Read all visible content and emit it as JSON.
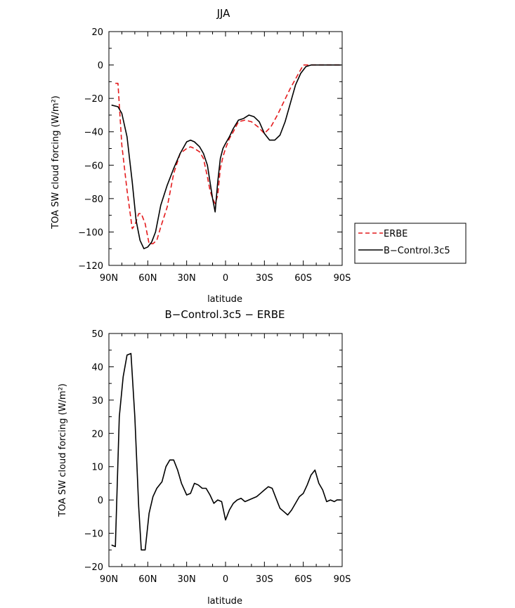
{
  "chart_data": [
    {
      "type": "line",
      "title": "JJA",
      "xlabel": "latitude",
      "ylabel": "TOA SW cloud forcing (W/m²)",
      "xlim": [
        90,
        -90
      ],
      "ylim": [
        -120,
        20
      ],
      "x_ticks": [
        90,
        60,
        30,
        0,
        -30,
        -60,
        -90
      ],
      "x_tick_labels": [
        "90N",
        "60N",
        "30N",
        "0",
        "30S",
        "60S",
        "90S"
      ],
      "y_ticks": [
        -120,
        -100,
        -80,
        -60,
        -40,
        -20,
        0,
        20
      ],
      "y_tick_labels": [
        "−120",
        "−100",
        "−80",
        "−60",
        "−40",
        "−20",
        "0",
        "20"
      ],
      "legend": {
        "position": "right",
        "entries": [
          "ERBE",
          "B−Control.3c5"
        ]
      },
      "series": [
        {
          "name": "ERBE",
          "color": "#e41a1c",
          "dash": "dashed",
          "x": [
            85,
            83,
            80,
            76,
            72,
            70,
            67,
            65,
            62,
            59,
            56,
            53,
            50,
            45,
            40,
            35,
            30,
            27,
            24,
            20,
            17,
            14,
            12,
            10,
            8,
            6,
            4,
            2,
            0,
            -3,
            -6,
            -10,
            -15,
            -20,
            -25,
            -30,
            -35,
            -40,
            -45,
            -50,
            -55,
            -60,
            -65,
            -70,
            -75,
            -80,
            -85,
            -89
          ],
          "values": [
            -11,
            -11,
            -48,
            -75,
            -98,
            -96,
            -89,
            -89,
            -95,
            -107,
            -107,
            -105,
            -97,
            -85,
            -65,
            -53,
            -50,
            -49,
            -50,
            -52,
            -56,
            -67,
            -75,
            -80,
            -83,
            -78,
            -62,
            -55,
            -50,
            -44,
            -40,
            -34,
            -33,
            -34,
            -37,
            -41,
            -37,
            -30,
            -22,
            -14,
            -7,
            0,
            0,
            0,
            0,
            0,
            0,
            0
          ]
        },
        {
          "name": "B−Control.3c5",
          "color": "#000000",
          "dash": "solid",
          "x": [
            88,
            83,
            80,
            76,
            72,
            69,
            66,
            63,
            60,
            57,
            54,
            50,
            45,
            40,
            35,
            30,
            27,
            24,
            20,
            17,
            14,
            12,
            10,
            8,
            6,
            4,
            2,
            0,
            -3,
            -6,
            -10,
            -14,
            -18,
            -22,
            -26,
            -30,
            -34,
            -38,
            -42,
            -46,
            -50,
            -54,
            -58,
            -62,
            -66,
            -70,
            -75,
            -80,
            -85,
            -89
          ],
          "values": [
            -24,
            -25,
            -29,
            -43,
            -70,
            -93,
            -105,
            -110,
            -109,
            -106,
            -100,
            -84,
            -72,
            -62,
            -53,
            -46,
            -45,
            -46,
            -49,
            -53,
            -60,
            -70,
            -80,
            -88,
            -70,
            -56,
            -50,
            -47,
            -43,
            -38,
            -33,
            -32,
            -30,
            -31,
            -34,
            -41,
            -45,
            -45,
            -42,
            -34,
            -23,
            -12,
            -5,
            -1,
            0,
            0,
            0,
            0,
            0,
            0
          ]
        }
      ]
    },
    {
      "type": "line",
      "title": "B−Control.3c5 − ERBE",
      "xlabel": "latitude",
      "ylabel": "TOA SW cloud forcing (W/m²)",
      "xlim": [
        90,
        -90
      ],
      "ylim": [
        -20,
        50
      ],
      "x_ticks": [
        90,
        60,
        30,
        0,
        -30,
        -60,
        -90
      ],
      "x_tick_labels": [
        "90N",
        "60N",
        "30N",
        "0",
        "30S",
        "60S",
        "90S"
      ],
      "y_ticks": [
        -20,
        -10,
        0,
        10,
        20,
        30,
        40,
        50
      ],
      "y_tick_labels": [
        "−20",
        "−10",
        "0",
        "10",
        "20",
        "30",
        "40",
        "50"
      ],
      "series": [
        {
          "name": "B−Control.3c5 − ERBE",
          "color": "#000000",
          "dash": "solid",
          "x": [
            88,
            85,
            82,
            79,
            76,
            73,
            70,
            67,
            65,
            62,
            59,
            56,
            53,
            49,
            46,
            43,
            40,
            37,
            34,
            30,
            27,
            24,
            21,
            18,
            15,
            12,
            9,
            6,
            3,
            0,
            -3,
            -6,
            -9,
            -12,
            -15,
            -18,
            -21,
            -24,
            -27,
            -30,
            -33,
            -36,
            -39,
            -42,
            -45,
            -48,
            -51,
            -54,
            -57,
            -60,
            -63,
            -66,
            -69,
            -72,
            -75,
            -78,
            -81,
            -84,
            -86,
            -89
          ],
          "values": [
            -13.5,
            -14,
            25,
            37,
            43.5,
            44,
            25,
            -2,
            -15,
            -15,
            -4,
            1,
            3.5,
            5.5,
            10,
            12,
            12,
            9,
            5,
            1.5,
            2,
            5,
            4.5,
            3.5,
            3.5,
            1.5,
            -1,
            0,
            -0.5,
            -6,
            -3,
            -1,
            0,
            0.5,
            -0.5,
            0,
            0.5,
            1,
            2,
            3,
            4,
            3.5,
            0.5,
            -2.5,
            -3.5,
            -4.5,
            -3,
            -1,
            1,
            2,
            4.5,
            7.5,
            9,
            5,
            3,
            -0.5,
            0,
            -0.5,
            0,
            0
          ]
        }
      ]
    }
  ]
}
